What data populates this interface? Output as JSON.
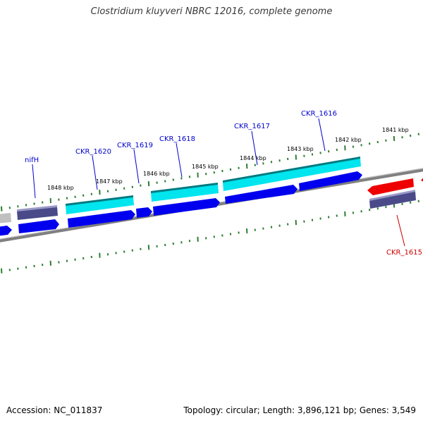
{
  "title": "Clostridium kluyveri NBRC 12016, complete genome",
  "accession": "Accession: NC_011837",
  "summary": "Topology: circular; Length: 3,896,121 bp; Genes: 3,549",
  "colors": {
    "gene_label": "#0000cc",
    "highlight_label": "#cc0000",
    "tick": "#2e7d32",
    "cds_forward": "#0000ee",
    "gene_track": "#4a4a8a",
    "rrna_cyan": "#00e5ee",
    "selected_red": "#ee0000",
    "backbone": "#808080"
  },
  "kbp_labels": [
    "1848 kbp",
    "1847 kbp",
    "1846 kbp",
    "1845 kbp",
    "1844 kbp",
    "1843 kbp",
    "1842 kbp",
    "1841 kbp"
  ],
  "genes": [
    {
      "label": "nifH",
      "kind": "normal"
    },
    {
      "label": "CKR_1620",
      "kind": "normal"
    },
    {
      "label": "CKR_1619",
      "kind": "normal"
    },
    {
      "label": "CKR_1618",
      "kind": "normal"
    },
    {
      "label": "CKR_1617",
      "kind": "normal"
    },
    {
      "label": "CKR_1616",
      "kind": "normal"
    },
    {
      "label": "CKR_1615",
      "kind": "highlight"
    }
  ]
}
